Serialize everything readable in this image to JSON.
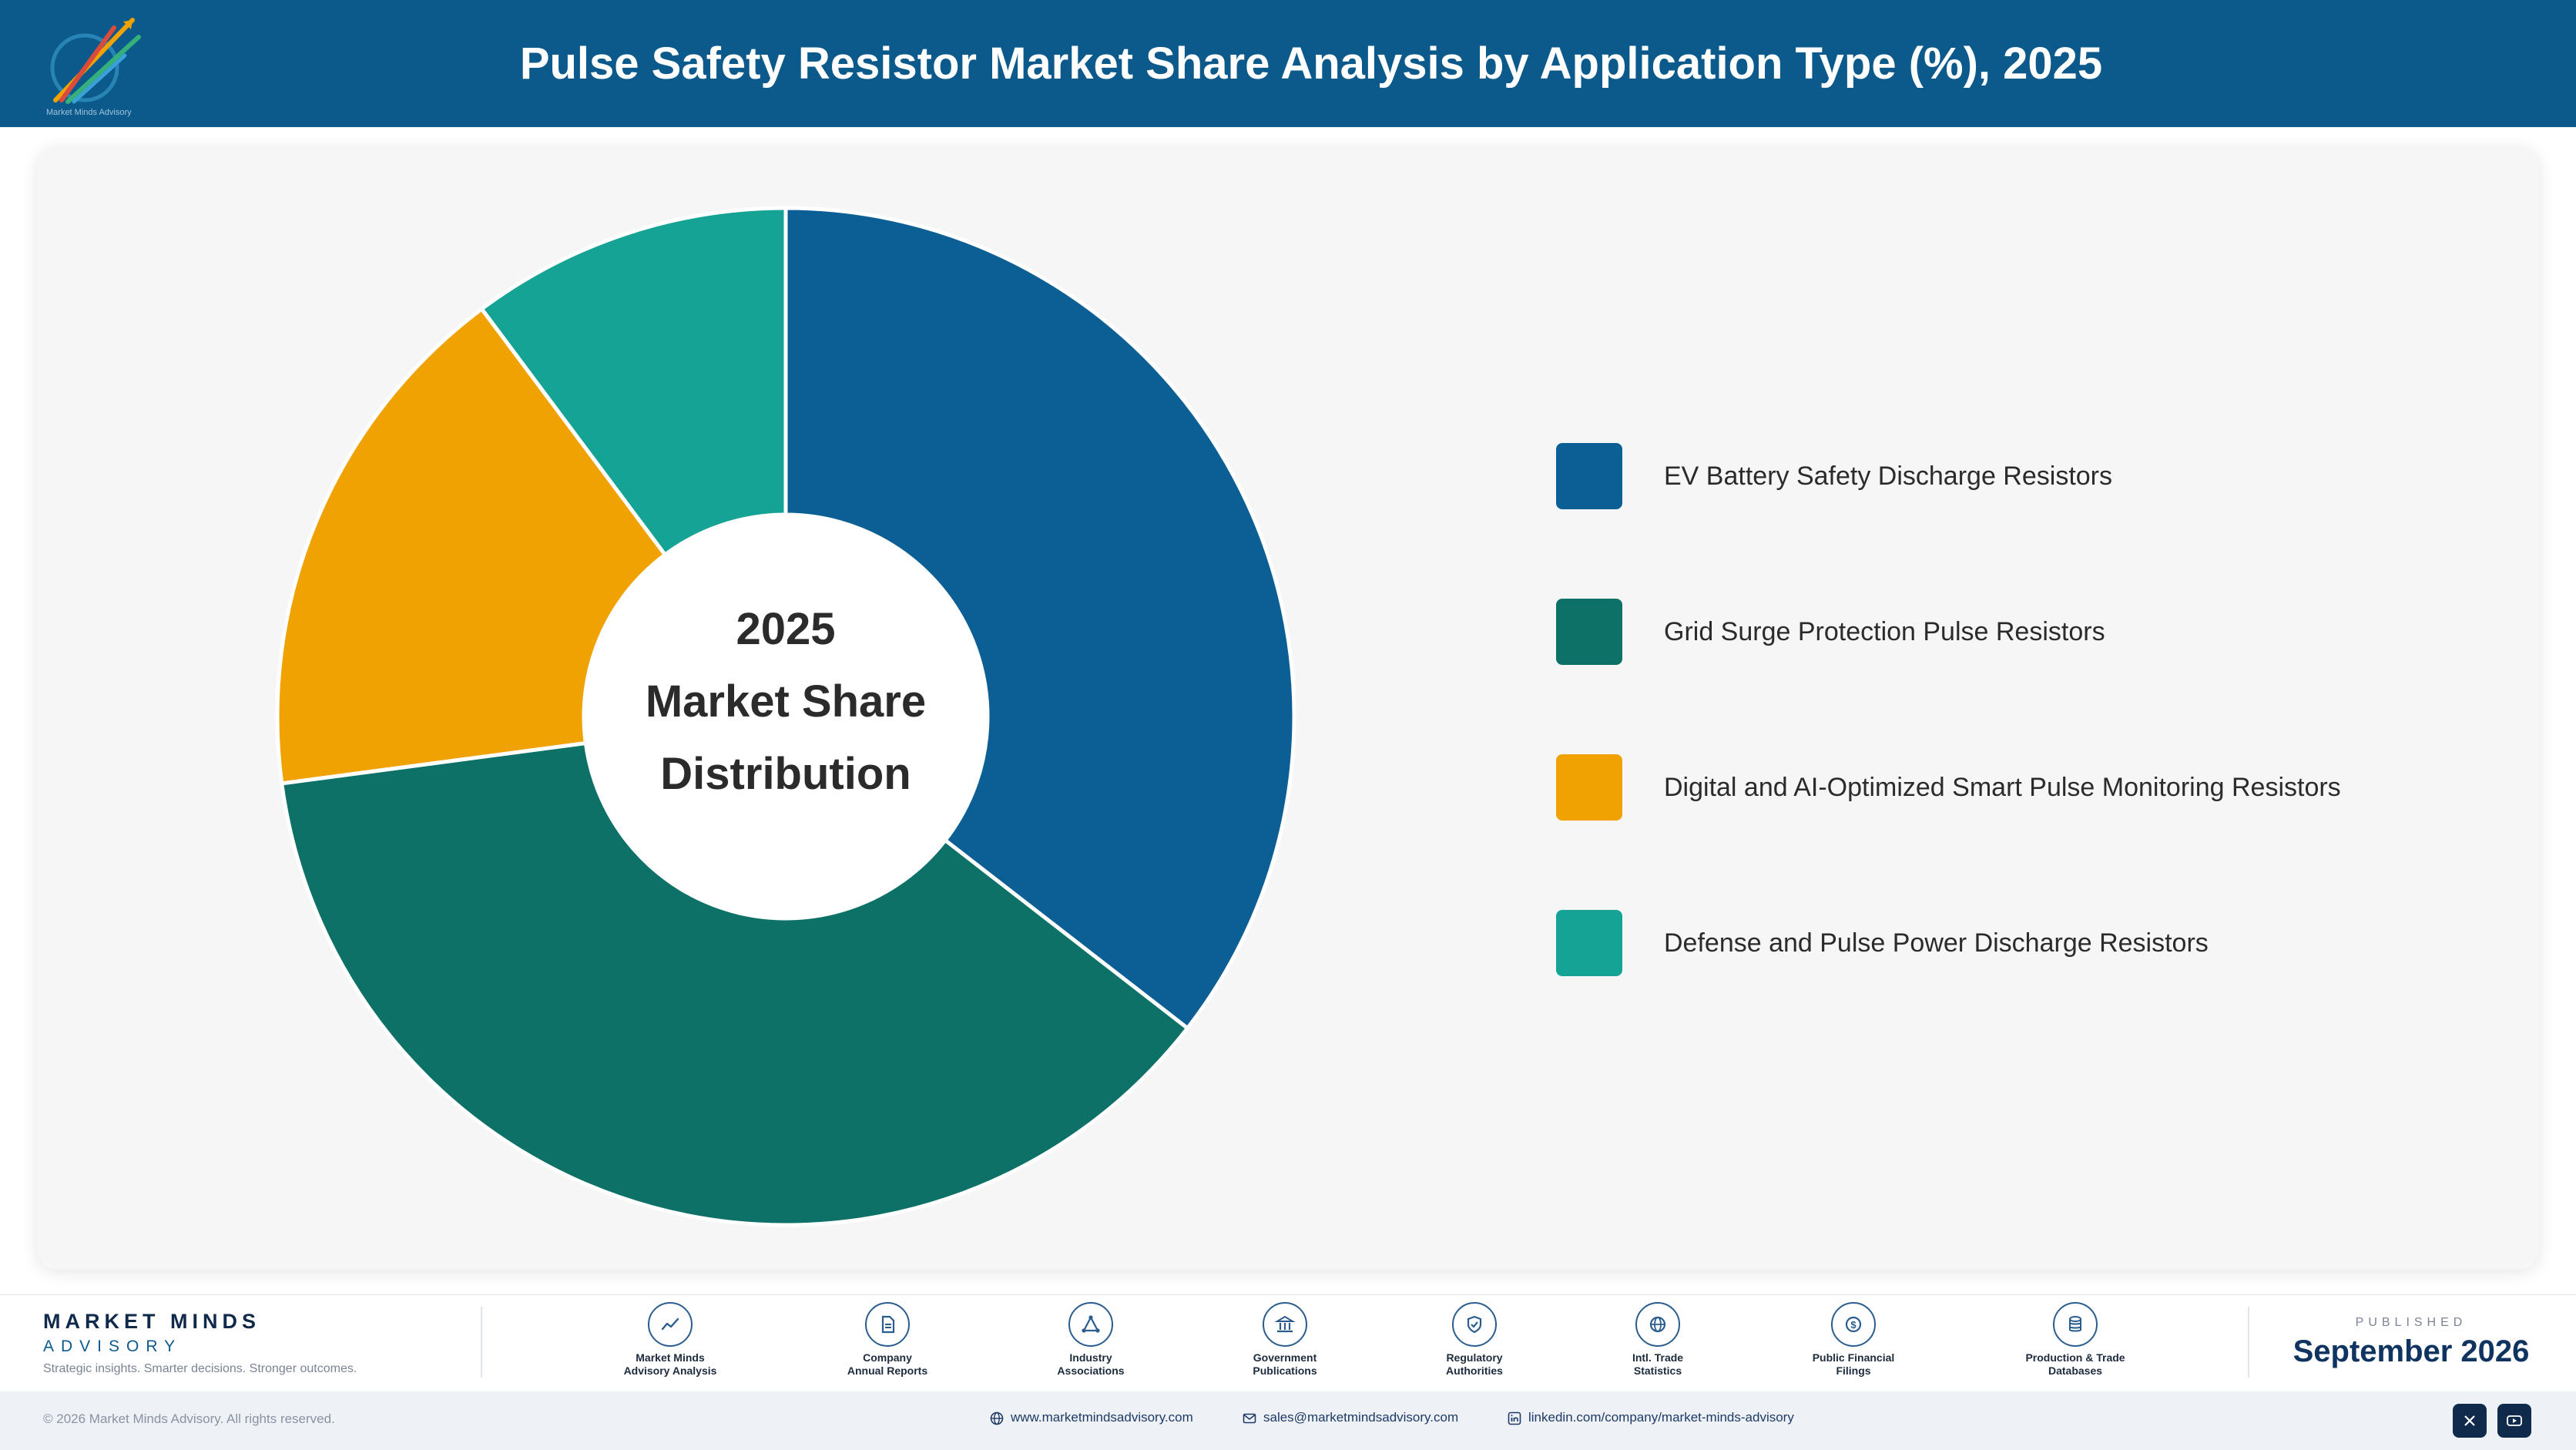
{
  "header": {
    "title": "Pulse Safety Resistor Market Share Analysis by Application Type (%), 2025",
    "logo_caption": "Market Minds Advisory"
  },
  "center_label": {
    "line1": "2025",
    "line2": "Market Share",
    "line3": "Distribution"
  },
  "chart_data": {
    "type": "pie",
    "style": "donut",
    "title": "Pulse Safety Resistor Market Share Analysis by Application Type (%), 2025",
    "unit": "%",
    "categories": [
      "EV Battery Safety Discharge Resistors",
      "Grid Surge Protection Pulse Resistors",
      "Digital and AI-Optimized Smart Pulse Monitoring Resistors",
      "Defense and Pulse Power Discharge Resistors"
    ],
    "values": [
      35.5,
      37.4,
      16.9,
      10.2
    ],
    "colors": [
      "#0c5f94",
      "#0d7168",
      "#f0a202",
      "#14a395"
    ],
    "legend_position": "right"
  },
  "footer": {
    "brand_name": "MARKET MINDS",
    "brand_sub": "ADVISORY",
    "tagline": "Strategic insights. Smarter decisions. Stronger outcomes.",
    "sources": [
      {
        "label": "Market Minds\nAdvisory Analysis",
        "icon": "trend-line-icon"
      },
      {
        "label": "Company\nAnnual Reports",
        "icon": "document-icon"
      },
      {
        "label": "Industry\nAssociations",
        "icon": "network-icon"
      },
      {
        "label": "Government\nPublications",
        "icon": "government-building-icon"
      },
      {
        "label": "Regulatory\nAuthorities",
        "icon": "shield-check-icon"
      },
      {
        "label": "Intl. Trade\nStatistics",
        "icon": "globe-icon"
      },
      {
        "label": "Public Financial\nFilings",
        "icon": "dollar-coin-icon"
      },
      {
        "label": "Production & Trade\nDatabases",
        "icon": "database-icon"
      }
    ],
    "published_label": "PUBLISHED",
    "published_date": "September 2026",
    "copyright": "© 2026 Market Minds Advisory. All rights reserved.",
    "website": "www.marketmindsadvisory.com",
    "email": "sales@marketmindsadvisory.com",
    "linkedin": "linkedin.com/company/market-minds-advisory"
  }
}
